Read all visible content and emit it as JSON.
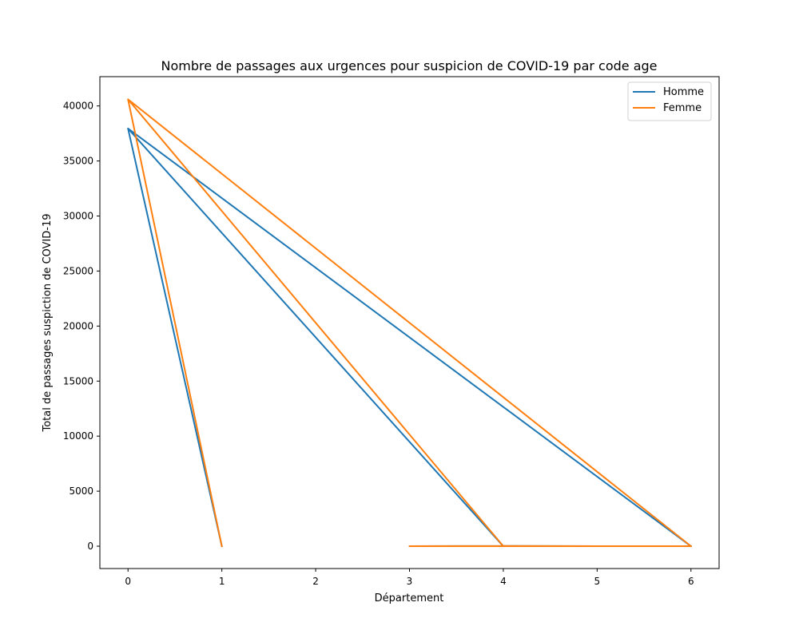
{
  "chart_data": {
    "type": "line",
    "title": "Nombre de passages aux urgences pour suspicion de COVID-19 par code age",
    "xlabel": "Département",
    "ylabel": "Total de passages suspiction de COVID-19",
    "xlim": [
      -0.3,
      6.3
    ],
    "ylim": [
      -2030,
      42660
    ],
    "xticks": [
      0,
      1,
      2,
      3,
      4,
      5,
      6
    ],
    "yticks": [
      0,
      5000,
      10000,
      15000,
      20000,
      25000,
      30000,
      35000,
      40000
    ],
    "grid": false,
    "legend_position": "top-right",
    "series": [
      {
        "name": "Homme",
        "color": "#1f77b4",
        "x": [
          1,
          0,
          4,
          0,
          6,
          3,
          4,
          5,
          6
        ],
        "y": [
          0,
          37950,
          0,
          37950,
          0,
          0,
          20,
          0,
          0
        ]
      },
      {
        "name": "Femme",
        "color": "#ff7f0e",
        "x": [
          1,
          0,
          4,
          0,
          6,
          3,
          4,
          5,
          6
        ],
        "y": [
          0,
          40600,
          0,
          40600,
          0,
          0,
          20,
          0,
          0
        ]
      }
    ]
  }
}
